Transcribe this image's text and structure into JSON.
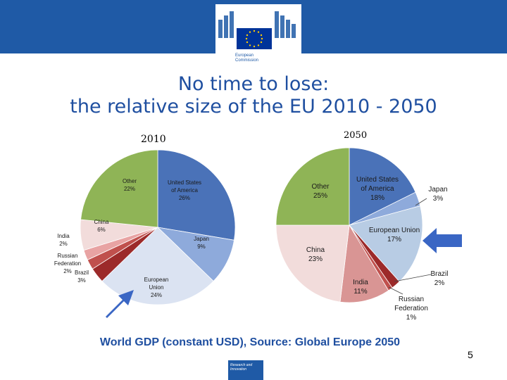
{
  "header": {
    "logo_text_line1": "European",
    "logo_text_line2": "Commission"
  },
  "title": {
    "line1": "No time to lose:",
    "line2": "the relative size of the EU 2010 - 2050"
  },
  "chart_data": [
    {
      "type": "pie",
      "title": "2010",
      "slices": [
        {
          "name": "United States of America",
          "value": 26,
          "color": "#4a72b8",
          "label_name": "United States of America",
          "label_pct": "26%"
        },
        {
          "name": "Japan",
          "value": 9,
          "color": "#8eaadb",
          "label_name": "Japan",
          "label_pct": "9%"
        },
        {
          "name": "European Union",
          "value": 24,
          "color": "#dbe3f2",
          "label_name": "European Union",
          "label_pct": "24%"
        },
        {
          "name": "Brazil",
          "value": 3,
          "color": "#9c2a2a",
          "label_name": "Brazil",
          "label_pct": "3%"
        },
        {
          "name": "Russian Federation",
          "value": 2,
          "color": "#c0504d",
          "label_name": "Russian Federation",
          "label_pct": "2%"
        },
        {
          "name": "India",
          "value": 2,
          "color": "#e8a3a3",
          "label_name": "India",
          "label_pct": "2%"
        },
        {
          "name": "China",
          "value": 6,
          "color": "#f2dcdb",
          "label_name": "China",
          "label_pct": "6%"
        },
        {
          "name": "Other",
          "value": 22,
          "color": "#8fb456",
          "label_name": "Other",
          "label_pct": "22%"
        }
      ]
    },
    {
      "type": "pie",
      "title": "2050",
      "slices": [
        {
          "name": "United States of America",
          "value": 18,
          "color": "#4a72b8",
          "label_name": "United States of America",
          "label_pct": "18%"
        },
        {
          "name": "Japan",
          "value": 3,
          "color": "#8eaadb",
          "label_name": "Japan",
          "label_pct": "3%"
        },
        {
          "name": "European Union",
          "value": 17,
          "color": "#b8cce4",
          "label_name": "European Union",
          "label_pct": "17%"
        },
        {
          "name": "Brazil",
          "value": 2,
          "color": "#9c2a2a",
          "label_name": "Brazil",
          "label_pct": "2%"
        },
        {
          "name": "Russian Federation",
          "value": 1,
          "color": "#c0504d",
          "label_name": "Russian Federation",
          "label_pct": "1%"
        },
        {
          "name": "India",
          "value": 11,
          "color": "#d99594",
          "label_name": "India",
          "label_pct": "11%"
        },
        {
          "name": "China",
          "value": 23,
          "color": "#f2dcdb",
          "label_name": "China",
          "label_pct": "23%"
        },
        {
          "name": "Other",
          "value": 25,
          "color": "#8fb456",
          "label_name": "Other",
          "label_pct": "25%"
        }
      ]
    }
  ],
  "source": "World GDP (constant USD), Source: Global Europe 2050",
  "page_number": "5",
  "footer_logo": {
    "line1": "Research and",
    "line2": "Innovation"
  },
  "colors": {
    "brand": "#1f5aa6",
    "title": "#1f4fa0",
    "arrow": "#3a66c4"
  }
}
